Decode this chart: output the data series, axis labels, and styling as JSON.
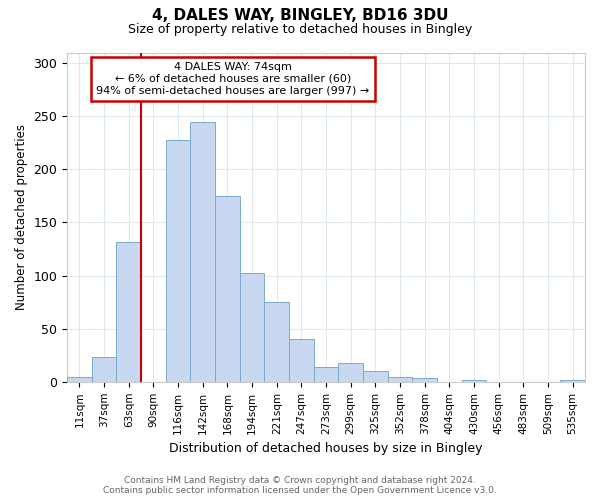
{
  "title1": "4, DALES WAY, BINGLEY, BD16 3DU",
  "title2": "Size of property relative to detached houses in Bingley",
  "xlabel": "Distribution of detached houses by size in Bingley",
  "ylabel": "Number of detached properties",
  "categories": [
    "11sqm",
    "37sqm",
    "63sqm",
    "90sqm",
    "116sqm",
    "142sqm",
    "168sqm",
    "194sqm",
    "221sqm",
    "247sqm",
    "273sqm",
    "299sqm",
    "325sqm",
    "352sqm",
    "378sqm",
    "404sqm",
    "430sqm",
    "456sqm",
    "483sqm",
    "509sqm",
    "535sqm"
  ],
  "values": [
    5,
    23,
    132,
    0,
    228,
    245,
    175,
    102,
    75,
    40,
    14,
    18,
    10,
    5,
    4,
    0,
    2,
    0,
    0,
    0,
    2
  ],
  "bar_color": "#c8d8f0",
  "bar_edge_color": "#7aaad0",
  "marker_line_color": "#cc0000",
  "annotation_line1": "4 DALES WAY: 74sqm",
  "annotation_line2": "← 6% of detached houses are smaller (60)",
  "annotation_line3": "94% of semi-detached houses are larger (997) →",
  "annotation_box_color": "#ffffff",
  "annotation_border_color": "#cc0000",
  "footer1": "Contains HM Land Registry data © Crown copyright and database right 2024.",
  "footer2": "Contains public sector information licensed under the Open Government Licence v3.0.",
  "ylim": [
    0,
    310
  ],
  "yticks": [
    0,
    50,
    100,
    150,
    200,
    250,
    300
  ],
  "background_color": "#ffffff",
  "grid_color": "#e0e8f0",
  "marker_bar_index": 2
}
